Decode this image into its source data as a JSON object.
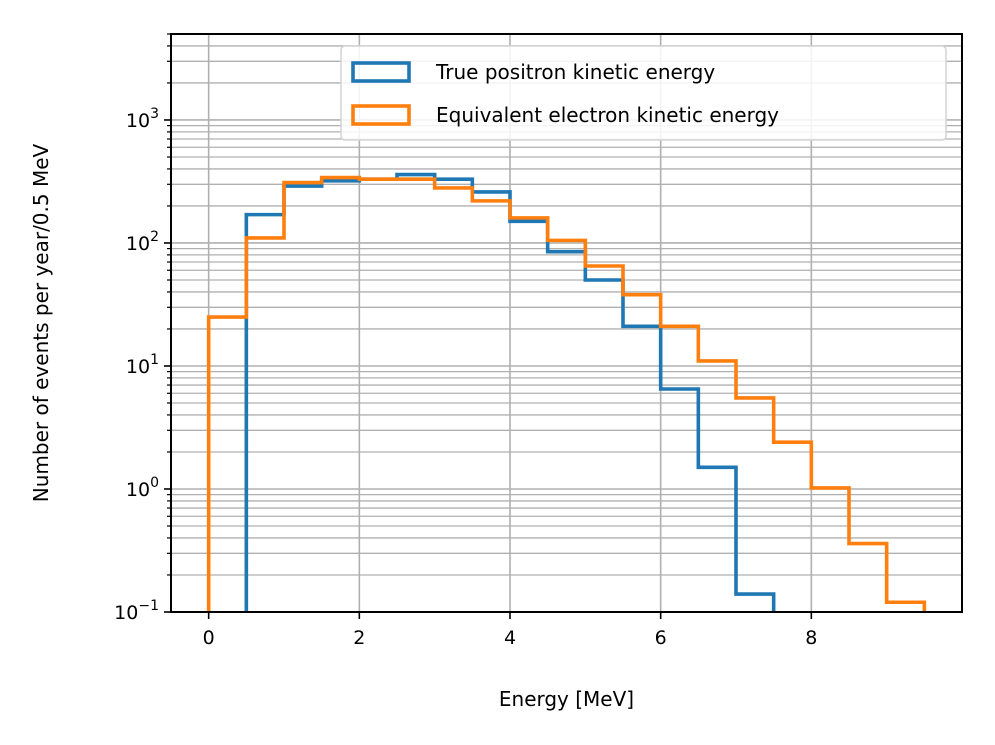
{
  "chart_data": {
    "type": "histogram",
    "xlabel": "Energy [MeV]",
    "ylabel": "Number of events per year/0.5 MeV",
    "xlim": [
      -0.5,
      10.0
    ],
    "ylim": [
      0.1,
      5000
    ],
    "yscale": "log",
    "grid": true,
    "grid_minor": true,
    "legend_position": "top-right",
    "x_ticks": [
      {
        "value": 0,
        "label": "0"
      },
      {
        "value": 2,
        "label": "2"
      },
      {
        "value": 4,
        "label": "4"
      },
      {
        "value": 6,
        "label": "6"
      },
      {
        "value": 8,
        "label": "8"
      }
    ],
    "y_ticks": [
      {
        "value": 0.1,
        "base": "10",
        "exp": "−1"
      },
      {
        "value": 1,
        "base": "10",
        "exp": "0"
      },
      {
        "value": 10,
        "base": "10",
        "exp": "1"
      },
      {
        "value": 100,
        "base": "10",
        "exp": "2"
      },
      {
        "value": 1000,
        "base": "10",
        "exp": "3"
      }
    ],
    "bin_edges": [
      0,
      0.5,
      1.0,
      1.5,
      2.0,
      2.5,
      3.0,
      3.5,
      4.0,
      4.5,
      5.0,
      5.5,
      6.0,
      6.5,
      7.0,
      7.5,
      8.0,
      8.5,
      9.0,
      9.5
    ],
    "series": [
      {
        "name": "True positron kinetic energy",
        "color": "#1f77b4",
        "values": [
          0,
          170,
          290,
          320,
          330,
          360,
          330,
          260,
          150,
          85,
          50,
          21,
          6.5,
          1.5,
          0.14,
          0,
          0,
          0,
          0
        ]
      },
      {
        "name": "Equivalent electron kinetic energy",
        "color": "#ff7f0e",
        "values": [
          25,
          110,
          310,
          340,
          330,
          330,
          280,
          220,
          160,
          105,
          65,
          38,
          21,
          11,
          5.5,
          2.4,
          1.02,
          0.36,
          0.12
        ]
      }
    ]
  }
}
